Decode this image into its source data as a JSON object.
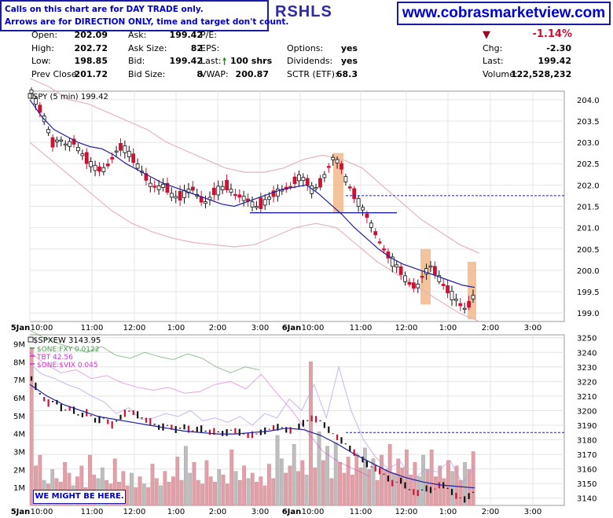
{
  "callbox": {
    "line1": "Calls on this chart are for DAY TRADE only.",
    "line2": "Arrows are for DIRECTION ONLY, time and target don't count."
  },
  "website": "www.cobrasmarketview.com",
  "symbol": "RSHLS",
  "quote": {
    "open_label": "Open:",
    "open": "202.09",
    "high_label": "High:",
    "high": "202.72",
    "low_label": "Low:",
    "low": "198.85",
    "prev_label": "Prev Close:",
    "prev": "201.72",
    "ask_label": "Ask:",
    "ask": "199.42",
    "asksize_label": "Ask Size:",
    "asksize": "82",
    "bid_label": "Bid:",
    "bid": "199.42",
    "bidsize_label": "Bid Size:",
    "bidsize": "8",
    "pe_label": "P/E:",
    "pe": "",
    "eps_label": "EPS:",
    "eps": "",
    "last_label": "Last:",
    "last_shares": "100 shrs",
    "vwap_label": "VWAP:",
    "vwap": "200.87",
    "options_label": "Options:",
    "options": "yes",
    "dividends_label": "Dividends:",
    "dividends": "yes",
    "sctr_label": "SCTR (ETF):",
    "sctr": "68.3",
    "pct_change": "-1.14%",
    "chg_label": "Chg:",
    "chg": "-2.30",
    "lastp_label": "Last:",
    "lastp": "199.42",
    "volume_label": "Volume:",
    "volume": "122,528,232"
  },
  "colors": {
    "up": "#111111",
    "down": "#cc1133",
    "ma": "#1f1fa0",
    "band": "#e4b4bc",
    "highlight": "#f3b98a",
    "annotation": "#0000cc",
    "fxy": "#4a9a4a",
    "tbt": "#cc33cc",
    "vix": "#b49ee8"
  },
  "chart_data": [
    {
      "type": "candlestick",
      "title": "SPY (5 min) 199.42",
      "y_ticks": [
        199.0,
        199.5,
        200.0,
        200.5,
        201.0,
        201.5,
        202.0,
        202.5,
        203.0,
        203.5,
        204.0
      ],
      "ylim": [
        198.8,
        204.2
      ],
      "x_ticks": [
        "5Jan",
        "10:00",
        "11:00",
        "12:00",
        "1:00",
        "2:00",
        "3:00",
        "6Jan",
        "10:00",
        "11:00",
        "12:00",
        "1:00",
        "2:00",
        "3:00"
      ],
      "resistance_level": 201.75,
      "support_level": 201.35,
      "close_path": [
        204.2,
        203.8,
        203.5,
        203.0,
        203.1,
        202.9,
        203.0,
        202.8,
        202.6,
        202.4,
        202.3,
        202.5,
        202.8,
        202.9,
        202.7,
        202.5,
        202.3,
        202.0,
        201.9,
        202.0,
        201.8,
        201.7,
        201.8,
        201.9,
        201.7,
        201.6,
        201.8,
        201.9,
        202.0,
        201.8,
        201.7,
        201.6,
        201.5,
        201.6,
        201.7,
        201.8,
        201.9,
        202.0,
        202.2,
        202.1,
        201.9,
        202.0,
        202.3,
        202.6,
        202.5,
        202.1,
        201.8,
        201.5,
        201.2,
        200.9,
        200.6,
        200.3,
        200.1,
        199.9,
        199.7,
        199.6,
        199.9,
        200.1,
        199.9,
        199.6,
        199.4,
        199.2,
        199.1,
        199.4
      ],
      "ma_path": [
        204.0,
        203.6,
        203.3,
        203.15,
        203.0,
        202.9,
        202.85,
        202.7,
        202.5,
        202.35,
        202.2,
        202.05,
        201.95,
        201.85,
        201.75,
        201.65,
        201.55,
        201.5,
        201.6,
        201.7,
        201.8,
        201.9,
        201.95,
        202.0,
        201.8,
        201.55,
        201.3,
        201.0,
        200.75,
        200.5,
        200.3,
        200.15,
        200.05,
        199.95,
        199.85,
        199.75,
        199.65,
        199.6
      ],
      "upper_band": [
        204.5,
        204.3,
        204.0,
        203.9,
        203.7,
        203.5,
        203.3,
        203.0,
        202.8,
        202.6,
        202.4,
        202.3,
        202.3,
        202.4,
        202.6,
        202.7,
        202.6,
        202.4,
        202.0,
        201.6,
        201.2,
        200.9,
        200.6,
        200.4
      ],
      "lower_band": [
        203.0,
        202.6,
        202.2,
        201.8,
        201.4,
        201.1,
        200.9,
        200.75,
        200.65,
        200.6,
        200.55,
        200.6,
        200.8,
        201.0,
        201.1,
        201.0,
        200.6,
        200.2,
        199.9,
        199.6,
        199.3,
        199.0,
        198.8
      ]
    },
    {
      "type": "line",
      "title": "$SPXEW 3143.95",
      "legend": [
        "$ONE:FXY 0.0122",
        "TBT 42.56",
        "$ONE:$VIX 0.045"
      ],
      "y_ticks": [
        3140,
        3150,
        3160,
        3170,
        3180,
        3190,
        3200,
        3210,
        3220,
        3230,
        3240,
        3250
      ],
      "ylim": [
        3135,
        3252
      ],
      "volume_ticks": [
        "1M",
        "2M",
        "3M",
        "4M",
        "5M",
        "6M",
        "7M",
        "8M",
        "9M"
      ],
      "volume_ylim": [
        0,
        9.5
      ],
      "reference_level": 3185,
      "close_path": [
        3222,
        3212,
        3205,
        3207,
        3200,
        3202,
        3196,
        3199,
        3193,
        3195,
        3190,
        3195,
        3200,
        3198,
        3194,
        3192,
        3188,
        3190,
        3187,
        3189,
        3186,
        3188,
        3185,
        3186,
        3184,
        3187,
        3185,
        3183,
        3184,
        3186,
        3188,
        3189,
        3186,
        3188,
        3192,
        3195,
        3193,
        3187,
        3182,
        3178,
        3172,
        3168,
        3162,
        3160,
        3156,
        3150,
        3152,
        3146,
        3143,
        3147,
        3145,
        3150,
        3146,
        3141,
        3139,
        3144
      ],
      "ma_path": [
        3218,
        3210,
        3204,
        3200,
        3196,
        3194,
        3192,
        3190,
        3188,
        3186,
        3185,
        3184,
        3184,
        3185,
        3186,
        3188,
        3187,
        3183,
        3177,
        3170,
        3164,
        3158,
        3154,
        3151,
        3149,
        3148,
        3147
      ],
      "volume": [
        8.8,
        2.2,
        2.8,
        1.4,
        1.2,
        2.0,
        1.5,
        1.3,
        2.4,
        1.8,
        1.1,
        1.6,
        2.2,
        1.0,
        2.8,
        1.7,
        1.5,
        2.1,
        1.4,
        1.2,
        2.6,
        1.3,
        1.9,
        1.1,
        1.8,
        1.0,
        1.6,
        1.2,
        1.0,
        2.3,
        1.5,
        1.1,
        1.9,
        1.3,
        1.6,
        2.7,
        1.4,
        3.3,
        1.8,
        2.4,
        1.4,
        1.2,
        2.5,
        1.6,
        1.3,
        2.0,
        1.7,
        1.2,
        3.1,
        1.9,
        1.4,
        2.2,
        1.5,
        1.8,
        1.3,
        1.6,
        1.1,
        2.3,
        1.5,
        3.9,
        2.6,
        1.8,
        2.2,
        3.4,
        1.9,
        2.5,
        1.7,
        8.0,
        2.1,
        4.1,
        2.5,
        3.3,
        1.5,
        3.5,
        2.4,
        1.8,
        2.7,
        1.7,
        2.9,
        2.1,
        3.2,
        2.0,
        2.6,
        1.4,
        2.8,
        2.0,
        3.4,
        1.8,
        2.6,
        2.1,
        3.1,
        1.7,
        2.4,
        1.6,
        2.8,
        2.0,
        3.1,
        1.6,
        2.2,
        1.5,
        2.5,
        1.9,
        2.2,
        1.4,
        2.4,
        2.0,
        3.0
      ],
      "fxy_path": [
        3255,
        3250,
        3246,
        3243,
        3240,
        3244,
        3238,
        3236,
        3240,
        3237,
        3235,
        3239,
        3236,
        3230,
        3226,
        3230,
        3228
      ],
      "tbt_path": [
        3240,
        3232,
        3226,
        3228,
        3222,
        3224,
        3219,
        3216,
        3214,
        3216,
        3212,
        3213,
        3218,
        3220,
        3215,
        3225,
        3212,
        3200,
        3185,
        3172,
        3165,
        3160,
        3155
      ],
      "vix_path": [
        3232,
        3225,
        3222,
        3218,
        3215,
        3210,
        3206,
        3198,
        3202,
        3194,
        3195,
        3198,
        3196,
        3200,
        3193,
        3195,
        3192,
        3196,
        3190,
        3198,
        3195,
        3208,
        3200,
        3218,
        3195,
        3230,
        3200,
        3180,
        3168,
        3160,
        3165,
        3152,
        3160,
        3158,
        3166,
        3150,
        3162
      ]
    }
  ]
}
